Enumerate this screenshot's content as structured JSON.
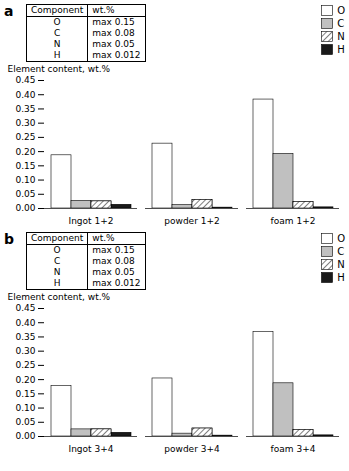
{
  "chart_data": [
    {
      "type": "bar",
      "title": "a",
      "categories": [
        "Ingot 1+2",
        "powder 1+2",
        "foam 1+2"
      ],
      "series": [
        {
          "name": "O",
          "color": "#ffffff",
          "values": [
            0.187,
            0.228,
            0.383
          ]
        },
        {
          "name": "C",
          "color": "#c0c0c0",
          "values": [
            0.027,
            0.012,
            0.192
          ]
        },
        {
          "name": "N",
          "color": "#ffffff",
          "values": [
            0.025,
            0.03,
            0.023
          ]
        },
        {
          "name": "H",
          "color": "#1a1a1a",
          "values": [
            0.013,
            0.003,
            0.004
          ]
        }
      ],
      "ylabel": "Element content, wt.%",
      "ylim": [
        0,
        0.45
      ],
      "yticks": [
        {
          "value": 0.0,
          "label": "0.00"
        },
        0.05,
        {
          "value": 0.1,
          "label": "0.10"
        },
        0.15,
        {
          "value": 0.2,
          "label": "0.20"
        },
        0.25,
        {
          "value": 0.3,
          "label": "0.30"
        },
        0.35,
        {
          "value": 0.4,
          "label": "0.40"
        },
        0.45
      ],
      "grid": false,
      "legend": "upper right",
      "table": {
        "header": [
          "Component",
          "wt.%"
        ],
        "rows": [
          [
            "O",
            "max 0.15"
          ],
          [
            "C",
            "max 0.08"
          ],
          [
            "N",
            "max 0.05"
          ],
          [
            "H",
            "max 0.012"
          ]
        ]
      }
    },
    {
      "type": "bar",
      "title": "b",
      "categories": [
        "Ingot 3+4",
        "powder 3+4",
        "foam 3+4"
      ],
      "series": [
        {
          "name": "O",
          "color": "#ffffff",
          "values": [
            0.177,
            0.204,
            0.368
          ]
        },
        {
          "name": "C",
          "color": "#c0c0c0",
          "values": [
            0.025,
            0.01,
            0.187
          ]
        },
        {
          "name": "N",
          "color": "#ffffff",
          "values": [
            0.025,
            0.028,
            0.023
          ]
        },
        {
          "name": "H",
          "color": "#1a1a1a",
          "values": [
            0.013,
            0.003,
            0.004
          ]
        }
      ],
      "ylabel": "Element content, wt.%",
      "ylim": [
        0,
        0.45
      ],
      "yticks": [
        {
          "value": 0.0,
          "label": "0.00"
        },
        0.05,
        {
          "value": 0.1,
          "label": "0.10"
        },
        0.15,
        {
          "value": 0.2,
          "label": "0.20"
        },
        0.25,
        {
          "value": 0.3,
          "label": "0.30"
        },
        0.35,
        {
          "value": 0.4,
          "label": "0.40"
        },
        0.45
      ],
      "grid": false,
      "legend": "upper right",
      "table": {
        "header": [
          "Component",
          "wt.%"
        ],
        "rows": [
          [
            "O",
            "max 0.15"
          ],
          [
            "C",
            "max 0.08"
          ],
          [
            "N",
            "max 0.05"
          ],
          [
            "H",
            "max 0.012"
          ]
        ]
      }
    }
  ]
}
